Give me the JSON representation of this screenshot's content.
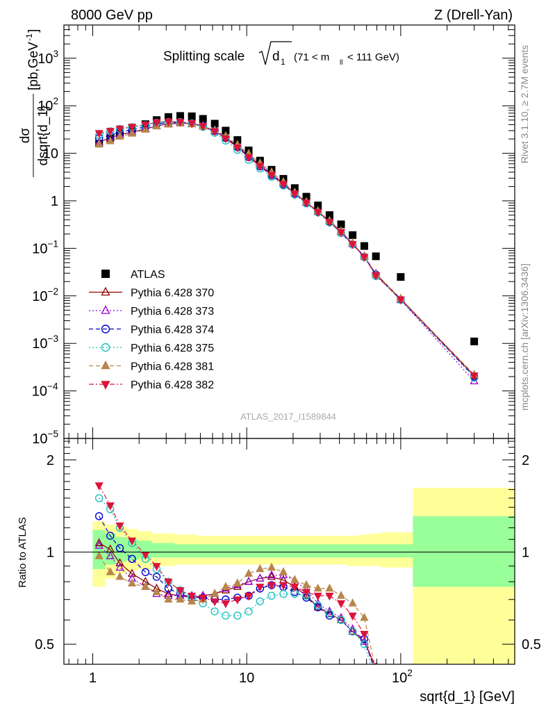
{
  "header": {
    "left": "8000 GeV pp",
    "right": "Z (Drell-Yan)"
  },
  "main_title": {
    "prefix": "Splitting scale",
    "symbol": "d",
    "subscript": "1",
    "cut_open": "(71 < m",
    "cut_sub": "ll",
    "cut_close": "< 111 GeV)"
  },
  "side_labels": {
    "rivet": "Rivet 3.1.10, ≥ 2.7M events",
    "site": "mcplots.cern.ch [arXiv:1306.3436]"
  },
  "analysis_id": "ATLAS_2017_I1589844",
  "colors": {
    "ATLAS": "#000000",
    "p370": "#8b0000",
    "p373": "#9400d3",
    "p374": "#0000cd",
    "p375": "#20c0c0",
    "p381": "#b8864b",
    "p382": "#dc143c",
    "band_green": "#99ff99",
    "band_yellow": "#ffff99"
  },
  "chart_data": [
    {
      "type": "scatter",
      "name": "top-panel",
      "xlabel": "sqrt{d_1} [GeV]",
      "ylabel": "dσ / dsqrt{d_1} [pb,GeV⁻¹]",
      "xscale": "log",
      "yscale": "log",
      "xlim": [
        0.65,
        550
      ],
      "ylim": [
        1e-05,
        5000
      ],
      "y_ticks": [
        {
          "v": 1e-05,
          "base": "10",
          "exp": "−5"
        },
        {
          "v": 0.0001,
          "base": "10",
          "exp": "−4"
        },
        {
          "v": 0.001,
          "base": "10",
          "exp": "−3"
        },
        {
          "v": 0.01,
          "base": "10",
          "exp": "−2"
        },
        {
          "v": 0.1,
          "base": "10",
          "exp": "−1"
        },
        {
          "v": 1,
          "base": "1",
          "exp": ""
        },
        {
          "v": 10,
          "base": "10",
          "exp": ""
        },
        {
          "v": 100,
          "base": "10",
          "exp": "2"
        },
        {
          "v": 1000,
          "base": "10",
          "exp": "3"
        }
      ],
      "legend_position": "left-middle",
      "x": [
        1.1,
        1.3,
        1.5,
        1.8,
        2.2,
        2.6,
        3.1,
        3.7,
        4.4,
        5.2,
        6.2,
        7.3,
        8.7,
        10.3,
        12.2,
        14.5,
        17.3,
        20.5,
        24.4,
        29.0,
        34.5,
        41.0,
        48.7,
        58.0,
        69.0,
        100.0,
        300.0
      ],
      "series": [
        {
          "name": "ATLAS",
          "key": "ATLAS",
          "marker": "square",
          "line": "none",
          "values": [
            16.0,
            21.0,
            27.0,
            33.0,
            41.0,
            50.0,
            58.0,
            61.0,
            60.0,
            53.0,
            42.0,
            30.0,
            19.0,
            11.5,
            7.0,
            4.5,
            2.9,
            1.85,
            1.22,
            0.8,
            0.5,
            0.32,
            0.19,
            0.112,
            0.068,
            0.025,
            0.0011
          ]
        },
        {
          "name": "Pythia 6.428 370",
          "key": "p370",
          "marker": "triangle-up-open",
          "line": "solid",
          "values": [
            17.0,
            21.5,
            24.5,
            28.0,
            32.5,
            37.5,
            42.0,
            44.0,
            41.5,
            37.0,
            29.0,
            21.5,
            14.0,
            8.8,
            5.6,
            3.6,
            2.3,
            1.45,
            0.92,
            0.59,
            0.37,
            0.22,
            0.125,
            0.067,
            0.029,
            0.0086,
            0.00021
          ]
        },
        {
          "name": "Pythia 6.428 373",
          "key": "p373",
          "marker": "triangle-up-open",
          "line": "dotted",
          "values": [
            17.0,
            21.5,
            24.5,
            28.0,
            32.5,
            37.5,
            42.0,
            44.0,
            41.5,
            37.0,
            29.5,
            22.0,
            14.5,
            9.2,
            5.8,
            3.75,
            2.35,
            1.45,
            0.93,
            0.6,
            0.38,
            0.22,
            0.125,
            0.068,
            0.029,
            0.0082,
            0.00016
          ]
        },
        {
          "name": "Pythia 6.428 374",
          "key": "p374",
          "marker": "circle-open",
          "line": "dashed",
          "values": [
            21.0,
            23.5,
            28.0,
            31.5,
            36.0,
            41.5,
            44.0,
            44.5,
            42.5,
            37.5,
            29.5,
            21.0,
            13.5,
            8.3,
            5.3,
            3.45,
            2.2,
            1.4,
            0.9,
            0.58,
            0.36,
            0.21,
            0.12,
            0.066,
            0.028,
            0.0083,
            0.0002
          ]
        },
        {
          "name": "Pythia 6.428 375",
          "key": "p375",
          "marker": "circle-open",
          "line": "dotted",
          "values": [
            24.0,
            29.0,
            32.5,
            35.5,
            39.0,
            44.0,
            45.5,
            45.5,
            42.5,
            36.0,
            27.0,
            18.5,
            11.8,
            7.3,
            4.8,
            3.2,
            2.1,
            1.35,
            0.88,
            0.57,
            0.35,
            0.21,
            0.12,
            0.065,
            0.026,
            0.0082,
            0.00019
          ]
        },
        {
          "name": "Pythia 6.428 381",
          "key": "p381",
          "marker": "triangle-up-filled",
          "line": "dashed",
          "values": [
            15.5,
            18.0,
            22.5,
            26.0,
            31.5,
            37.0,
            40.5,
            42.5,
            41.0,
            37.0,
            30.5,
            23.0,
            15.0,
            9.8,
            6.2,
            4.0,
            2.5,
            1.5,
            0.95,
            0.61,
            0.38,
            0.23,
            0.13,
            0.068,
            0.028,
            0.0088,
            0.00022
          ]
        },
        {
          "name": "Pythia 6.428 382",
          "key": "p382",
          "marker": "triangle-down-filled",
          "line": "dashdot",
          "values": [
            26.5,
            29.5,
            33.0,
            36.0,
            40.0,
            45.0,
            46.5,
            46.0,
            43.0,
            37.5,
            29.0,
            20.5,
            13.2,
            8.3,
            5.4,
            3.5,
            2.25,
            1.42,
            0.92,
            0.58,
            0.36,
            0.22,
            0.123,
            0.066,
            0.027,
            0.0084,
            0.00021
          ]
        }
      ]
    },
    {
      "type": "line",
      "name": "ratio-panel",
      "xlabel": "sqrt{d_1} [GeV]",
      "ylabel": "Ratio to ATLAS",
      "xscale": "log",
      "yscale": "log",
      "xlim": [
        0.65,
        550
      ],
      "ylim": [
        0.43,
        2.35
      ],
      "x_ticks": [
        {
          "v": 1,
          "base": "1",
          "exp": ""
        },
        {
          "v": 10,
          "base": "10",
          "exp": ""
        },
        {
          "v": 100,
          "base": "10",
          "exp": "2"
        }
      ],
      "y_ticks": [
        {
          "v": 0.5,
          "label": "0.5"
        },
        {
          "v": 1,
          "label": "1"
        },
        {
          "v": 2,
          "label": "2"
        }
      ],
      "bands": {
        "edges": [
          1.0,
          1.2,
          1.4,
          1.65,
          1.95,
          2.4,
          2.85,
          3.4,
          4.0,
          4.8,
          5.7,
          6.7,
          8.0,
          9.5,
          11.2,
          13.3,
          15.8,
          18.8,
          22.4,
          26.6,
          31.7,
          37.7,
          44.8,
          53.2,
          63.3,
          75.0,
          120.0,
          550.0
        ],
        "green": [
          [
            0.88,
            1.18
          ],
          [
            0.91,
            1.15
          ],
          [
            0.93,
            1.12
          ],
          [
            0.94,
            1.1
          ],
          [
            0.95,
            1.09
          ],
          [
            0.96,
            1.07
          ],
          [
            0.96,
            1.07
          ],
          [
            0.96,
            1.06
          ],
          [
            0.96,
            1.06
          ],
          [
            0.96,
            1.06
          ],
          [
            0.96,
            1.06
          ],
          [
            0.96,
            1.06
          ],
          [
            0.96,
            1.06
          ],
          [
            0.96,
            1.06
          ],
          [
            0.96,
            1.06
          ],
          [
            0.96,
            1.06
          ],
          [
            0.96,
            1.06
          ],
          [
            0.96,
            1.06
          ],
          [
            0.96,
            1.06
          ],
          [
            0.96,
            1.06
          ],
          [
            0.96,
            1.06
          ],
          [
            0.96,
            1.06
          ],
          [
            0.96,
            1.06
          ],
          [
            0.96,
            1.06
          ],
          [
            0.96,
            1.06
          ],
          [
            0.96,
            1.06
          ],
          [
            0.77,
            1.31
          ]
        ],
        "yellow": [
          [
            0.77,
            1.26
          ],
          [
            0.82,
            1.23
          ],
          [
            0.85,
            1.21
          ],
          [
            0.87,
            1.19
          ],
          [
            0.88,
            1.17
          ],
          [
            0.9,
            1.15
          ],
          [
            0.9,
            1.15
          ],
          [
            0.91,
            1.14
          ],
          [
            0.91,
            1.14
          ],
          [
            0.91,
            1.13
          ],
          [
            0.91,
            1.13
          ],
          [
            0.91,
            1.13
          ],
          [
            0.91,
            1.13
          ],
          [
            0.91,
            1.13
          ],
          [
            0.91,
            1.13
          ],
          [
            0.91,
            1.13
          ],
          [
            0.91,
            1.13
          ],
          [
            0.91,
            1.13
          ],
          [
            0.91,
            1.13
          ],
          [
            0.91,
            1.13
          ],
          [
            0.91,
            1.13
          ],
          [
            0.91,
            1.13
          ],
          [
            0.9,
            1.13
          ],
          [
            0.9,
            1.14
          ],
          [
            0.9,
            1.15
          ],
          [
            0.89,
            1.16
          ],
          [
            0.42,
            1.62
          ]
        ]
      },
      "x": [
        1.1,
        1.3,
        1.5,
        1.8,
        2.2,
        2.6,
        3.1,
        3.7,
        4.4,
        5.2,
        6.2,
        7.3,
        8.7,
        10.3,
        12.2,
        14.5,
        17.3,
        20.5,
        24.4,
        29.0,
        34.5,
        41.0,
        48.7,
        58.0,
        69.0
      ],
      "series": [
        {
          "name": "Pythia 6.428 370",
          "key": "p370",
          "marker": "triangle-up-open",
          "line": "solid",
          "values": [
            1.07,
            1.02,
            0.92,
            0.85,
            0.8,
            0.76,
            0.73,
            0.72,
            0.71,
            0.72,
            0.73,
            0.75,
            0.77,
            0.8,
            0.82,
            0.83,
            0.81,
            0.77,
            0.72,
            0.66,
            0.63,
            0.6,
            0.55,
            0.51,
            0.42
          ]
        },
        {
          "name": "Pythia 6.428 373",
          "key": "p373",
          "marker": "triangle-up-open",
          "line": "dotted",
          "values": [
            1.05,
            0.97,
            0.89,
            0.82,
            0.77,
            0.73,
            0.72,
            0.72,
            0.72,
            0.72,
            0.73,
            0.76,
            0.78,
            0.8,
            0.82,
            0.84,
            0.84,
            0.81,
            0.75,
            0.68,
            0.64,
            0.61,
            0.56,
            0.51,
            0.41
          ]
        },
        {
          "name": "Pythia 6.428 374",
          "key": "p374",
          "marker": "circle-open",
          "line": "dashed",
          "values": [
            1.31,
            1.13,
            1.03,
            0.95,
            0.86,
            0.83,
            0.76,
            0.73,
            0.71,
            0.71,
            0.7,
            0.7,
            0.71,
            0.72,
            0.76,
            0.78,
            0.77,
            0.74,
            0.71,
            0.66,
            0.62,
            0.6,
            0.55,
            0.52,
            0.4
          ]
        },
        {
          "name": "Pythia 6.428 375",
          "key": "p375",
          "marker": "circle-open",
          "line": "dotted",
          "values": [
            1.5,
            1.38,
            1.2,
            1.07,
            0.95,
            0.88,
            0.8,
            0.75,
            0.71,
            0.68,
            0.64,
            0.62,
            0.62,
            0.64,
            0.69,
            0.72,
            0.73,
            0.73,
            0.72,
            0.67,
            0.63,
            0.6,
            0.55,
            0.5,
            0.38
          ]
        },
        {
          "name": "Pythia 6.428 381",
          "key": "p381",
          "marker": "triangle-up-filled",
          "line": "dashed",
          "values": [
            0.97,
            0.86,
            0.83,
            0.79,
            0.77,
            0.74,
            0.7,
            0.7,
            0.69,
            0.7,
            0.73,
            0.77,
            0.79,
            0.85,
            0.88,
            0.89,
            0.86,
            0.81,
            0.78,
            0.76,
            0.76,
            0.72,
            0.68,
            0.61,
            0.41
          ]
        },
        {
          "name": "Pythia 6.428 382",
          "key": "p382",
          "marker": "triangle-down-filled",
          "line": "dashdot",
          "values": [
            1.65,
            1.42,
            1.22,
            1.09,
            0.98,
            0.9,
            0.8,
            0.75,
            0.72,
            0.71,
            0.69,
            0.68,
            0.7,
            0.72,
            0.77,
            0.78,
            0.78,
            0.77,
            0.74,
            0.72,
            0.72,
            0.68,
            0.62,
            0.54,
            0.4
          ]
        }
      ]
    }
  ]
}
